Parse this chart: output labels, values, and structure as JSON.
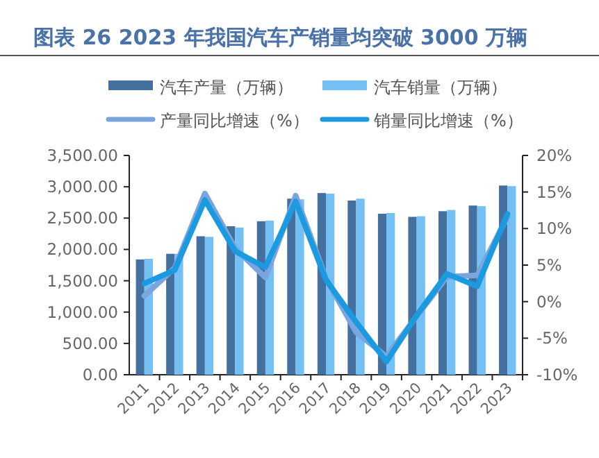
{
  "chart_data": {
    "type": "bar",
    "title": "图表 26 2023 年我国汽车产销量均突破 3000 万辆",
    "categories": [
      "2011",
      "2012",
      "2013",
      "2014",
      "2015",
      "2016",
      "2017",
      "2018",
      "2019",
      "2020",
      "2021",
      "2022",
      "2023"
    ],
    "series": [
      {
        "name": "汽车产量（万辆）",
        "color": "#44709f",
        "values": [
          1840,
          1930,
          2210,
          2370,
          2450,
          2810,
          2900,
          2780,
          2570,
          2520,
          2610,
          2700,
          3020
        ]
      },
      {
        "name": "汽车销量（万辆）",
        "color": "#74c0f5",
        "values": [
          1850,
          1930,
          2200,
          2350,
          2460,
          2800,
          2890,
          2810,
          2580,
          2530,
          2630,
          2690,
          3010
        ]
      },
      {
        "name": "产量同比增速（%）",
        "type": "line",
        "axis": "y2",
        "color": "#7aa5df",
        "values": [
          0.8,
          4.6,
          14.8,
          7.3,
          3.3,
          14.5,
          3.2,
          -4.2,
          -7.5,
          -2.0,
          3.4,
          3.6,
          11.6
        ]
      },
      {
        "name": "销量同比增速（%）",
        "type": "line",
        "axis": "y2",
        "color": "#1c9ae0",
        "values": [
          2.5,
          4.3,
          13.9,
          6.9,
          4.7,
          13.7,
          3.0,
          -2.8,
          -8.2,
          -1.9,
          3.8,
          2.1,
          12.0
        ]
      }
    ],
    "ylim": [
      0,
      3500
    ],
    "yticks": [
      {
        "value": 0,
        "label": "0.00"
      },
      {
        "value": 500,
        "label": "500.00"
      },
      {
        "value": 1000,
        "label": "1,000.00"
      },
      {
        "value": 1500,
        "label": "1,500.00"
      },
      {
        "value": 2000,
        "label": "2,000.00"
      },
      {
        "value": 2500,
        "label": "2,500.00"
      },
      {
        "value": 3000,
        "label": "3,000.00"
      },
      {
        "value": 3500,
        "label": "3,500.00"
      }
    ],
    "y2lim": [
      -10,
      20
    ],
    "y2ticks": [
      {
        "value": -10,
        "label": "-10%"
      },
      {
        "value": -5,
        "label": "-5%"
      },
      {
        "value": 0,
        "label": "0%"
      },
      {
        "value": 5,
        "label": "5%"
      },
      {
        "value": 10,
        "label": "10%"
      },
      {
        "value": 15,
        "label": "15%"
      },
      {
        "value": 20,
        "label": "20%"
      }
    ],
    "legend": "top",
    "grid": false
  }
}
